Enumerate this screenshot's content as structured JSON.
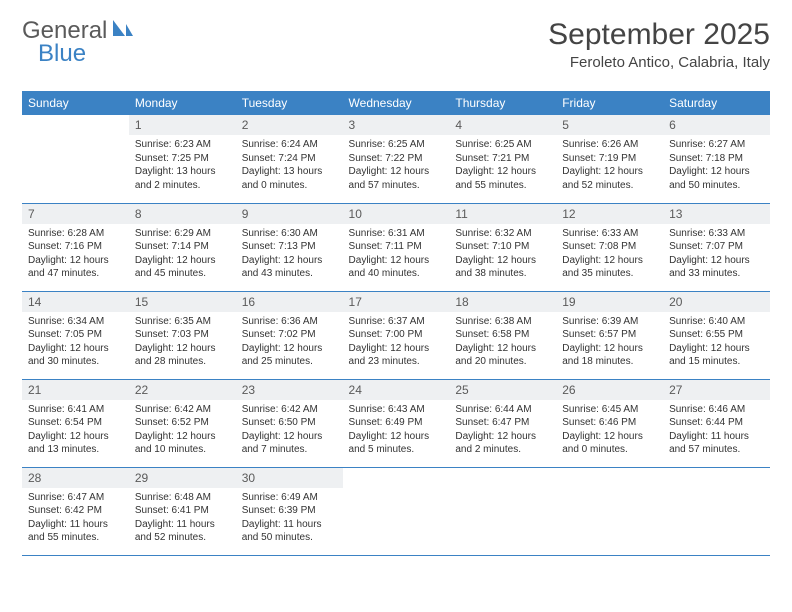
{
  "logo": {
    "word1": "General",
    "word2": "Blue"
  },
  "title": "September 2025",
  "location": "Feroleto Antico, Calabria, Italy",
  "colors": {
    "header_bg": "#3b82c4",
    "header_text": "#ffffff",
    "daynum_bg": "#eef0f2",
    "daynum_text": "#5a5a5a",
    "body_text": "#333333",
    "row_border": "#3b82c4",
    "logo_gray": "#5a5a5a",
    "logo_blue": "#3b82c4",
    "page_bg": "#ffffff"
  },
  "typography": {
    "title_fontsize": 30,
    "location_fontsize": 15,
    "header_fontsize": 12,
    "daynum_fontsize": 12,
    "body_fontsize": 10,
    "logo_fontsize": 24
  },
  "weekdays": [
    "Sunday",
    "Monday",
    "Tuesday",
    "Wednesday",
    "Thursday",
    "Friday",
    "Saturday"
  ],
  "grid": [
    [
      {
        "blank": true
      },
      {
        "n": "1",
        "sr": "6:23 AM",
        "ss": "7:25 PM",
        "dl": "13 hours and 2 minutes."
      },
      {
        "n": "2",
        "sr": "6:24 AM",
        "ss": "7:24 PM",
        "dl": "13 hours and 0 minutes."
      },
      {
        "n": "3",
        "sr": "6:25 AM",
        "ss": "7:22 PM",
        "dl": "12 hours and 57 minutes."
      },
      {
        "n": "4",
        "sr": "6:25 AM",
        "ss": "7:21 PM",
        "dl": "12 hours and 55 minutes."
      },
      {
        "n": "5",
        "sr": "6:26 AM",
        "ss": "7:19 PM",
        "dl": "12 hours and 52 minutes."
      },
      {
        "n": "6",
        "sr": "6:27 AM",
        "ss": "7:18 PM",
        "dl": "12 hours and 50 minutes."
      }
    ],
    [
      {
        "n": "7",
        "sr": "6:28 AM",
        "ss": "7:16 PM",
        "dl": "12 hours and 47 minutes."
      },
      {
        "n": "8",
        "sr": "6:29 AM",
        "ss": "7:14 PM",
        "dl": "12 hours and 45 minutes."
      },
      {
        "n": "9",
        "sr": "6:30 AM",
        "ss": "7:13 PM",
        "dl": "12 hours and 43 minutes."
      },
      {
        "n": "10",
        "sr": "6:31 AM",
        "ss": "7:11 PM",
        "dl": "12 hours and 40 minutes."
      },
      {
        "n": "11",
        "sr": "6:32 AM",
        "ss": "7:10 PM",
        "dl": "12 hours and 38 minutes."
      },
      {
        "n": "12",
        "sr": "6:33 AM",
        "ss": "7:08 PM",
        "dl": "12 hours and 35 minutes."
      },
      {
        "n": "13",
        "sr": "6:33 AM",
        "ss": "7:07 PM",
        "dl": "12 hours and 33 minutes."
      }
    ],
    [
      {
        "n": "14",
        "sr": "6:34 AM",
        "ss": "7:05 PM",
        "dl": "12 hours and 30 minutes."
      },
      {
        "n": "15",
        "sr": "6:35 AM",
        "ss": "7:03 PM",
        "dl": "12 hours and 28 minutes."
      },
      {
        "n": "16",
        "sr": "6:36 AM",
        "ss": "7:02 PM",
        "dl": "12 hours and 25 minutes."
      },
      {
        "n": "17",
        "sr": "6:37 AM",
        "ss": "7:00 PM",
        "dl": "12 hours and 23 minutes."
      },
      {
        "n": "18",
        "sr": "6:38 AM",
        "ss": "6:58 PM",
        "dl": "12 hours and 20 minutes."
      },
      {
        "n": "19",
        "sr": "6:39 AM",
        "ss": "6:57 PM",
        "dl": "12 hours and 18 minutes."
      },
      {
        "n": "20",
        "sr": "6:40 AM",
        "ss": "6:55 PM",
        "dl": "12 hours and 15 minutes."
      }
    ],
    [
      {
        "n": "21",
        "sr": "6:41 AM",
        "ss": "6:54 PM",
        "dl": "12 hours and 13 minutes."
      },
      {
        "n": "22",
        "sr": "6:42 AM",
        "ss": "6:52 PM",
        "dl": "12 hours and 10 minutes."
      },
      {
        "n": "23",
        "sr": "6:42 AM",
        "ss": "6:50 PM",
        "dl": "12 hours and 7 minutes."
      },
      {
        "n": "24",
        "sr": "6:43 AM",
        "ss": "6:49 PM",
        "dl": "12 hours and 5 minutes."
      },
      {
        "n": "25",
        "sr": "6:44 AM",
        "ss": "6:47 PM",
        "dl": "12 hours and 2 minutes."
      },
      {
        "n": "26",
        "sr": "6:45 AM",
        "ss": "6:46 PM",
        "dl": "12 hours and 0 minutes."
      },
      {
        "n": "27",
        "sr": "6:46 AM",
        "ss": "6:44 PM",
        "dl": "11 hours and 57 minutes."
      }
    ],
    [
      {
        "n": "28",
        "sr": "6:47 AM",
        "ss": "6:42 PM",
        "dl": "11 hours and 55 minutes."
      },
      {
        "n": "29",
        "sr": "6:48 AM",
        "ss": "6:41 PM",
        "dl": "11 hours and 52 minutes."
      },
      {
        "n": "30",
        "sr": "6:49 AM",
        "ss": "6:39 PM",
        "dl": "11 hours and 50 minutes."
      },
      {
        "blank": true
      },
      {
        "blank": true
      },
      {
        "blank": true
      },
      {
        "blank": true
      }
    ]
  ],
  "labels": {
    "sunrise": "Sunrise:",
    "sunset": "Sunset:",
    "daylight": "Daylight:"
  }
}
